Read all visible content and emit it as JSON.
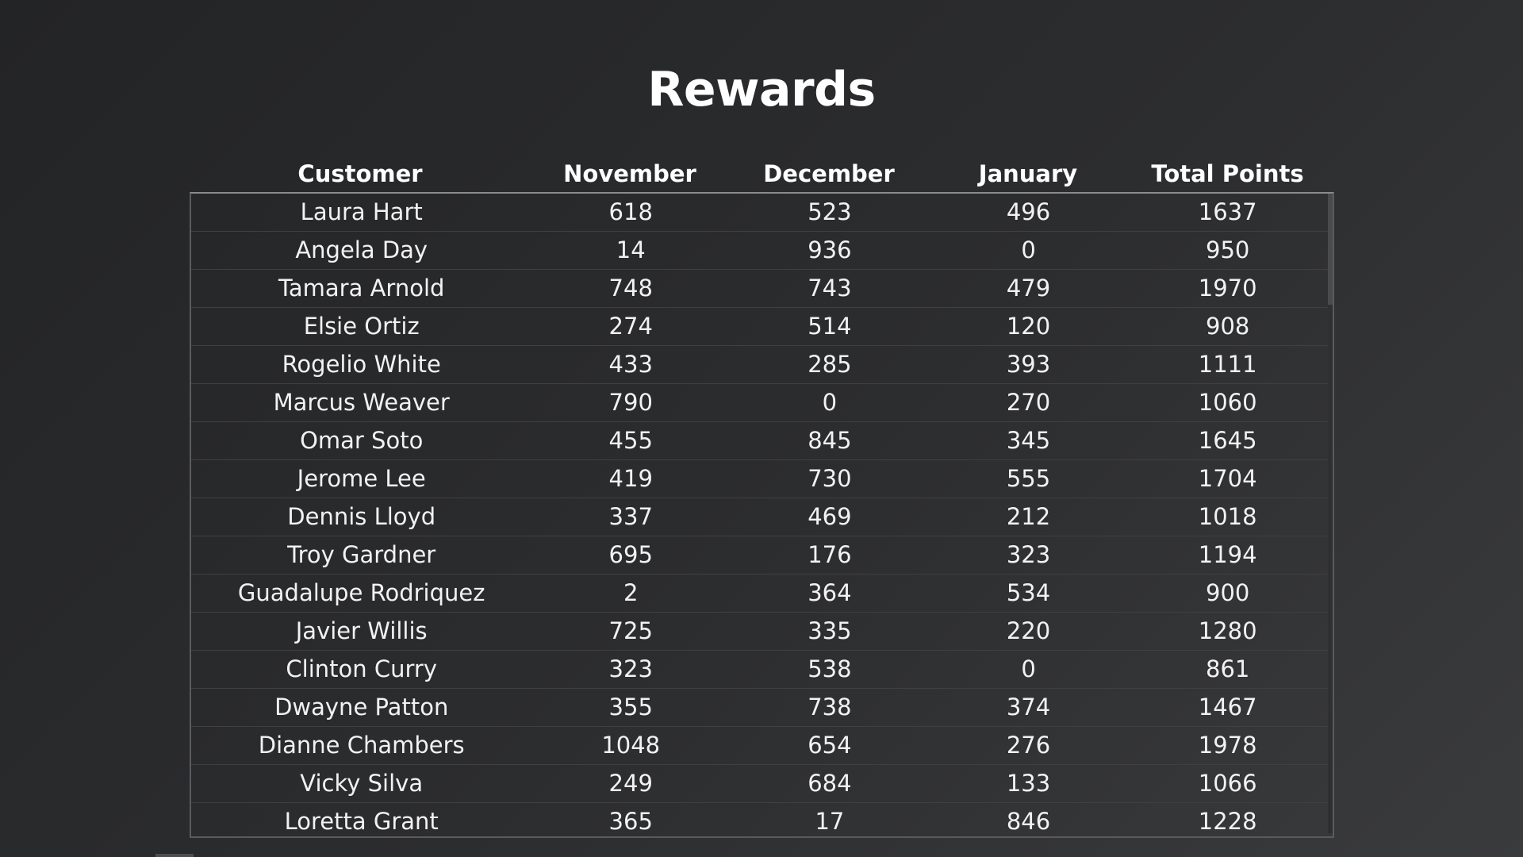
{
  "title": "Rewards",
  "table": {
    "columns": [
      "Customer",
      "November",
      "December",
      "January",
      "Total Points"
    ],
    "rows": [
      [
        "Laura Hart",
        "618",
        "523",
        "496",
        "1637"
      ],
      [
        "Angela Day",
        "14",
        "936",
        "0",
        "950"
      ],
      [
        "Tamara Arnold",
        "748",
        "743",
        "479",
        "1970"
      ],
      [
        "Elsie Ortiz",
        "274",
        "514",
        "120",
        "908"
      ],
      [
        "Rogelio White",
        "433",
        "285",
        "393",
        "1111"
      ],
      [
        "Marcus Weaver",
        "790",
        "0",
        "270",
        "1060"
      ],
      [
        "Omar Soto",
        "455",
        "845",
        "345",
        "1645"
      ],
      [
        "Jerome Lee",
        "419",
        "730",
        "555",
        "1704"
      ],
      [
        "Dennis Lloyd",
        "337",
        "469",
        "212",
        "1018"
      ],
      [
        "Troy Gardner",
        "695",
        "176",
        "323",
        "1194"
      ],
      [
        "Guadalupe Rodriquez",
        "2",
        "364",
        "534",
        "900"
      ],
      [
        "Javier Willis",
        "725",
        "335",
        "220",
        "1280"
      ],
      [
        "Clinton Curry",
        "323",
        "538",
        "0",
        "861"
      ],
      [
        "Dwayne Patton",
        "355",
        "738",
        "374",
        "1467"
      ],
      [
        "Dianne Chambers",
        "1048",
        "654",
        "276",
        "1978"
      ],
      [
        "Vicky Silva",
        "249",
        "684",
        "133",
        "1066"
      ],
      [
        "Loretta Grant",
        "365",
        "17",
        "846",
        "1228"
      ]
    ]
  },
  "colors": {
    "background": "#2c2d2f",
    "text": "#ffffff",
    "border": "#5a5b5d"
  }
}
